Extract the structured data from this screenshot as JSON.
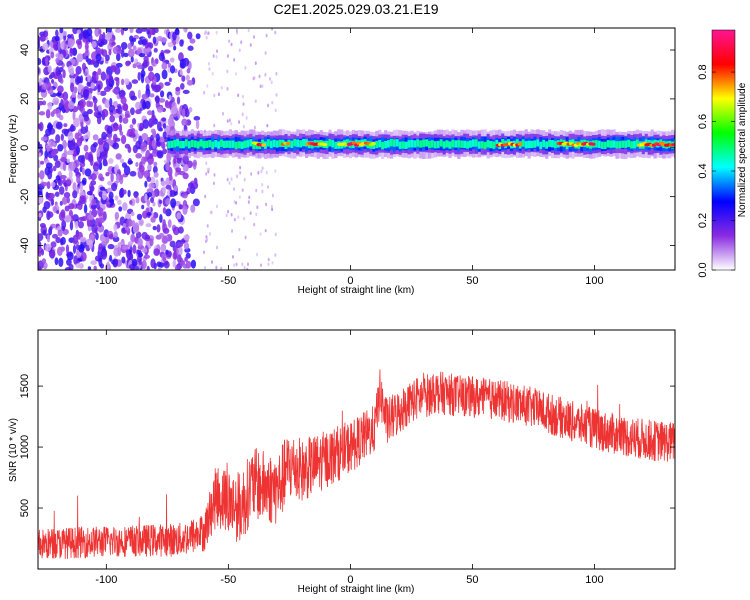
{
  "title": "C2E1.2025.029.03.21.E19",
  "chart_data": [
    {
      "type": "heatmap",
      "xlabel": "Height of straight line (km)",
      "ylabel": "Frequency (Hz)",
      "xlim": [
        -128,
        133
      ],
      "ylim": [
        -50,
        49
      ],
      "xticks": [
        -100,
        -50,
        0,
        50,
        100
      ],
      "yticks": [
        -40,
        -20,
        0,
        20,
        40
      ],
      "colorbar": {
        "label": "Normalized spectral amplitude",
        "range": [
          0,
          0.97
        ],
        "ticks": [
          "0.0",
          "0.2",
          "0.4",
          "0.6",
          "0.8"
        ],
        "tick_values": [
          0,
          0.2,
          0.4,
          0.6,
          0.8
        ],
        "colors": [
          "#ffffff",
          "#8a2be2",
          "#0000ff",
          "#00ffff",
          "#00ff00",
          "#ffff00",
          "#ff0000",
          "#ff1493"
        ]
      },
      "description_features": {
        "noise_region_x": [
          -128,
          -60
        ],
        "signal_band_center_hz": 1.5,
        "signal_band_halfwidth_hz": 2.5,
        "signal_start_x": -75,
        "hot_segments_x": [
          [
            -40,
            -35
          ],
          [
            -28,
            -25
          ],
          [
            -18,
            -10
          ],
          [
            -5,
            10
          ],
          [
            60,
            70
          ],
          [
            85,
            100
          ],
          [
            118,
            133
          ]
        ]
      }
    },
    {
      "type": "line",
      "xlabel": "Height of straight line (km)",
      "ylabel": "SNR (10 * v/v)",
      "xlim": [
        -128,
        133
      ],
      "ylim": [
        0,
        1960
      ],
      "xticks": [
        -100,
        -50,
        0,
        50,
        100
      ],
      "yticks": [
        500,
        1000,
        1500
      ],
      "color": "#ee3333",
      "x": [
        -128,
        -110,
        -90,
        -70,
        -60,
        -55,
        -45,
        -40,
        -30,
        -25,
        -20,
        -10,
        0,
        10,
        12,
        15,
        25,
        35,
        45,
        55,
        65,
        75,
        85,
        95,
        105,
        115,
        125,
        133
      ],
      "y": [
        200,
        220,
        230,
        240,
        300,
        600,
        500,
        700,
        650,
        850,
        800,
        900,
        1000,
        1150,
        1450,
        1200,
        1380,
        1450,
        1420,
        1400,
        1370,
        1320,
        1250,
        1180,
        1120,
        1080,
        1050,
        1040
      ],
      "spread": [
        130,
        130,
        130,
        140,
        160,
        260,
        300,
        300,
        300,
        300,
        260,
        240,
        220,
        200,
        200,
        200,
        180,
        180,
        170,
        170,
        170,
        170,
        170,
        170,
        170,
        170,
        170,
        170
      ]
    }
  ]
}
